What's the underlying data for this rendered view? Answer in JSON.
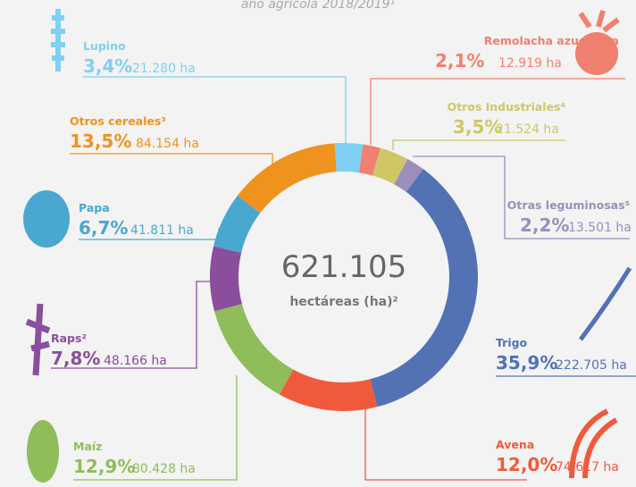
{
  "chart_data": {
    "type": "donut",
    "subtitle": "año agrícola 2018/2019¹",
    "center_value": "621.105",
    "center_label": "hectáreas (ha)²",
    "categories": [
      "Lupino",
      "Remolacha azucarera",
      "Otros Industriales⁴",
      "Otras leguminosas⁵",
      "Trigo",
      "Avena",
      "Maíz",
      "Raps²",
      "Papa",
      "Otros cereales³"
    ],
    "values": [
      3.4,
      2.1,
      3.5,
      2.2,
      35.9,
      12.0,
      12.9,
      7.8,
      6.7,
      13.5
    ],
    "value_labels": [
      "3,4%",
      "2,1%",
      "3,5%",
      "2,2%",
      "35,9%",
      "12,0%",
      "12,9%",
      "7,8%",
      "6,7%",
      "13,5%"
    ],
    "areas": [
      21280,
      12919,
      21524,
      13501,
      222705,
      74617,
      80428,
      48166,
      41811,
      84154
    ],
    "area_labels": [
      "21.280 ha",
      "12.919 ha",
      "21.524 ha",
      "13.501 ha",
      "222.705 ha",
      "74.617 ha",
      "80.428 ha",
      "48.166 ha",
      "41.811 ha",
      "84.154 ha"
    ],
    "colors": [
      "#7fd0f2",
      "#f0806f",
      "#cfc766",
      "#9a8fba",
      "#5272b4",
      "#f05a3c",
      "#8fbd5a",
      "#8a4e9c",
      "#4aa7cf",
      "#f0921e"
    ]
  }
}
